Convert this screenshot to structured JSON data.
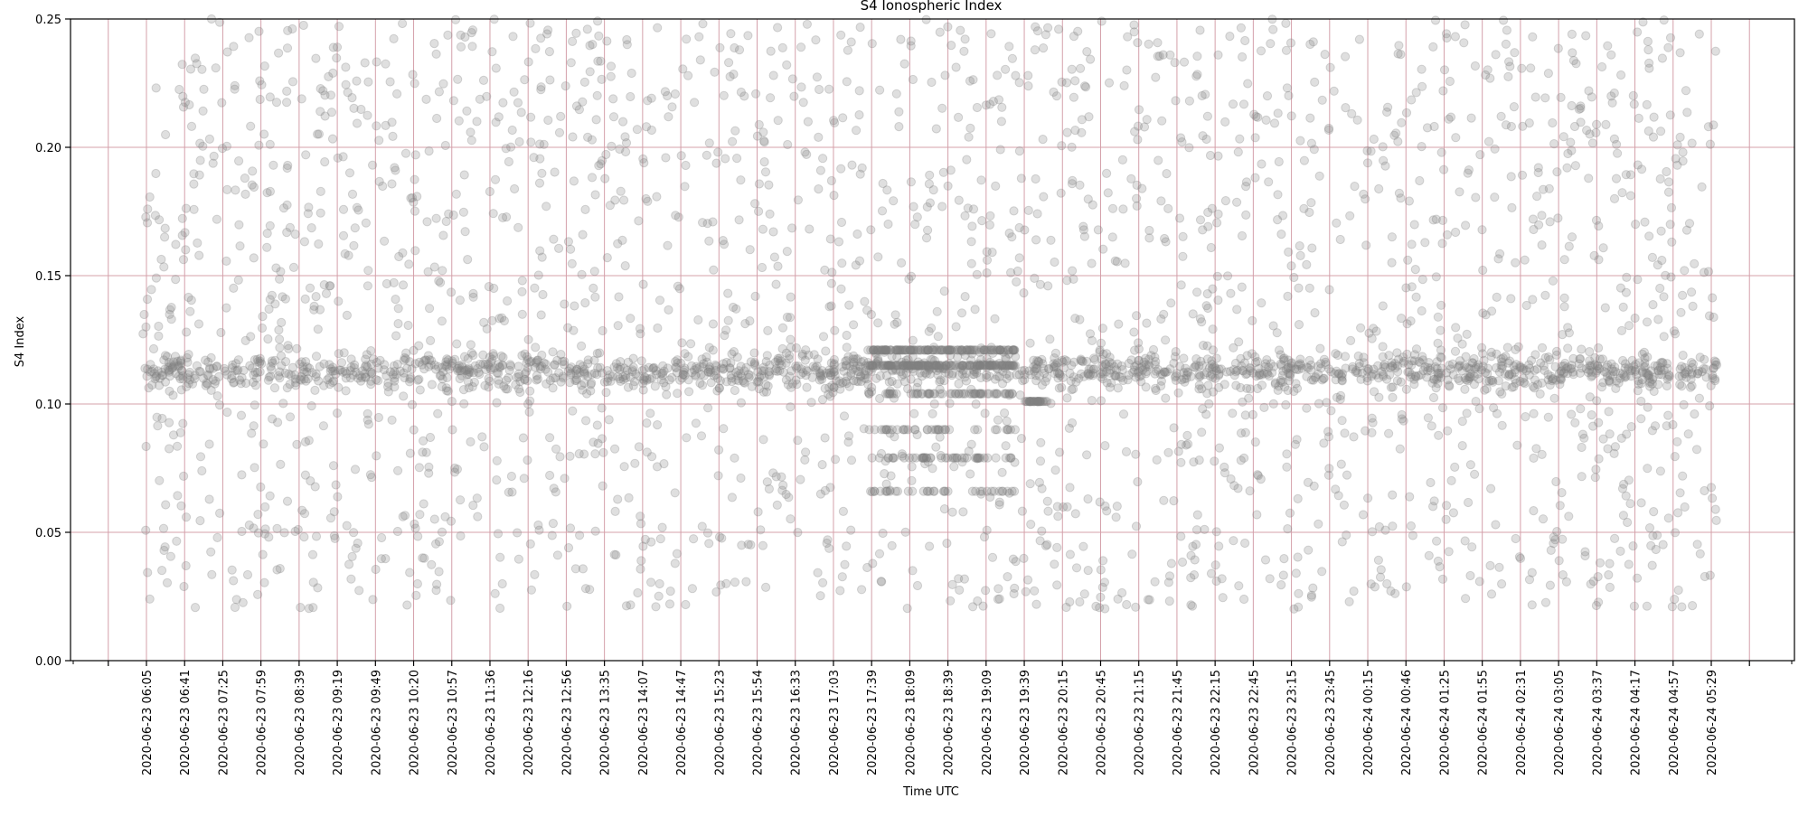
{
  "chart_data": {
    "type": "scatter",
    "title": "S4 Ionospheric Index",
    "xlabel": "Time UTC",
    "ylabel": "S4 Index",
    "ylim": [
      0,
      0.25
    ],
    "yticks": [
      "0.00",
      "0.05",
      "0.10",
      "0.15",
      "0.20",
      "0.25"
    ],
    "xticks": [
      "2020-06-23 06:05",
      "2020-06-23 06:41",
      "2020-06-23 07:25",
      "2020-06-23 07:59",
      "2020-06-23 08:39",
      "2020-06-23 09:19",
      "2020-06-23 09:49",
      "2020-06-23 10:20",
      "2020-06-23 10:57",
      "2020-06-23 11:36",
      "2020-06-23 12:16",
      "2020-06-23 12:56",
      "2020-06-23 13:35",
      "2020-06-23 14:07",
      "2020-06-23 14:47",
      "2020-06-23 15:23",
      "2020-06-23 15:54",
      "2020-06-23 16:33",
      "2020-06-23 17:03",
      "2020-06-23 17:39",
      "2020-06-23 18:09",
      "2020-06-23 18:39",
      "2020-06-23 19:09",
      "2020-06-23 19:39",
      "2020-06-23 20:15",
      "2020-06-23 20:45",
      "2020-06-23 21:15",
      "2020-06-23 21:45",
      "2020-06-23 22:15",
      "2020-06-23 22:45",
      "2020-06-23 23:15",
      "2020-06-23 23:45",
      "2020-06-24 00:15",
      "2020-06-24 00:46",
      "2020-06-24 01:25",
      "2020-06-24 01:55",
      "2020-06-24 02:31",
      "2020-06-24 03:05",
      "2020-06-24 03:37",
      "2020-06-24 04:17",
      "2020-06-24 04:57",
      "2020-06-24 05:29"
    ],
    "grid": true,
    "grid_color": "#d4a0aa",
    "marker_color": "#808080",
    "marker_alpha": 0.25,
    "band_levels": [
      0.066,
      0.079,
      0.09,
      0.104,
      0.115,
      0.121
    ],
    "median_level": 0.113
  }
}
